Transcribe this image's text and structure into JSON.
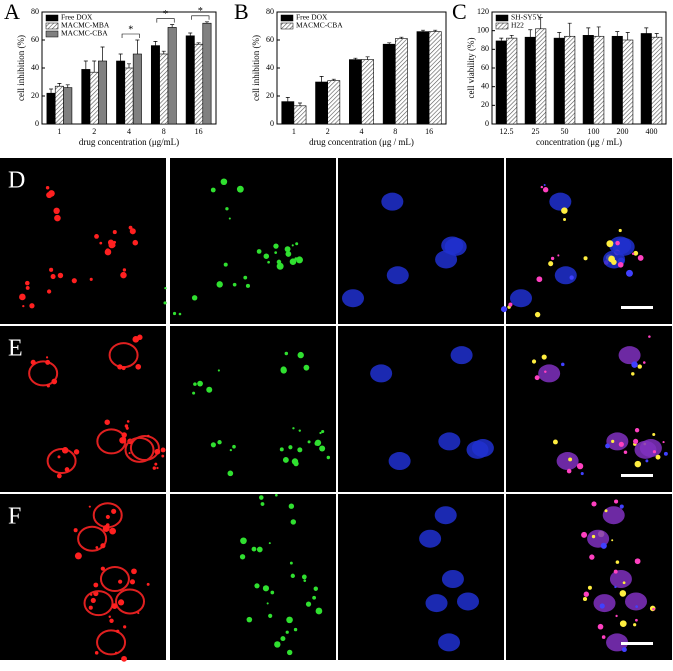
{
  "chart_data": [
    {
      "type": "bar",
      "panel_label": "A",
      "ylabel": "cell inhibition (%)",
      "xlabel": "drug concentration (μg/mL)",
      "categories": [
        "1",
        "2",
        "4",
        "8",
        "16"
      ],
      "series": [
        {
          "name": "Free DOX",
          "color": "#000000",
          "hatched": false,
          "values": [
            22,
            39,
            45,
            56,
            63
          ],
          "errors": [
            3,
            6,
            5,
            3,
            2
          ]
        },
        {
          "name": "MACMC-MBA",
          "color": "#d9d9d9",
          "hatched": true,
          "values": [
            27,
            37,
            40,
            50,
            57
          ],
          "errors": [
            2,
            8,
            3,
            2,
            1
          ]
        },
        {
          "name": "MACMC-CBA",
          "color": "#808080",
          "hatched": false,
          "values": [
            26,
            45,
            50,
            69,
            72
          ],
          "errors": [
            2,
            10,
            10,
            2,
            1
          ]
        }
      ],
      "ylim": [
        0,
        80
      ],
      "yticks": [
        0,
        20,
        40,
        60,
        80
      ],
      "legend": "upper left",
      "annotations": [
        "*",
        "*",
        "*"
      ]
    },
    {
      "type": "bar",
      "panel_label": "B",
      "ylabel": "cell inhibition (%)",
      "xlabel": "drug concentration (μg / mL)",
      "categories": [
        "1",
        "2",
        "4",
        "8",
        "16"
      ],
      "series": [
        {
          "name": "Free DOX",
          "color": "#000000",
          "hatched": false,
          "values": [
            16,
            30,
            46,
            57,
            66
          ],
          "errors": [
            3,
            4,
            1,
            1,
            1
          ]
        },
        {
          "name": "MACMC-CBA",
          "color": "#d9d9d9",
          "hatched": true,
          "values": [
            13,
            31,
            46,
            61,
            66
          ],
          "errors": [
            2,
            1,
            2,
            1,
            1
          ]
        }
      ],
      "ylim": [
        0,
        80
      ],
      "yticks": [
        0,
        20,
        40,
        60,
        80
      ],
      "legend": "upper left"
    },
    {
      "type": "bar",
      "panel_label": "C",
      "ylabel": "cell viability (%)",
      "xlabel": "concentration (μg / mL)",
      "categories": [
        "12.5",
        "25",
        "50",
        "100",
        "200",
        "400"
      ],
      "series": [
        {
          "name": "SH-SY5Y",
          "color": "#000000",
          "hatched": false,
          "values": [
            89,
            93,
            92,
            95,
            94,
            97
          ],
          "errors": [
            3,
            8,
            6,
            8,
            5,
            6
          ]
        },
        {
          "name": "H22",
          "color": "#ffffff",
          "hatched": true,
          "values": [
            92,
            102,
            94,
            94,
            90,
            93
          ],
          "errors": [
            3,
            12,
            14,
            10,
            8,
            4
          ]
        }
      ],
      "ylim": [
        0,
        120
      ],
      "yticks": [
        0,
        20,
        40,
        60,
        80,
        100,
        120
      ],
      "legend": "upper left"
    }
  ],
  "image_panels": {
    "row_labels": [
      "D",
      "E",
      "F"
    ]
  }
}
